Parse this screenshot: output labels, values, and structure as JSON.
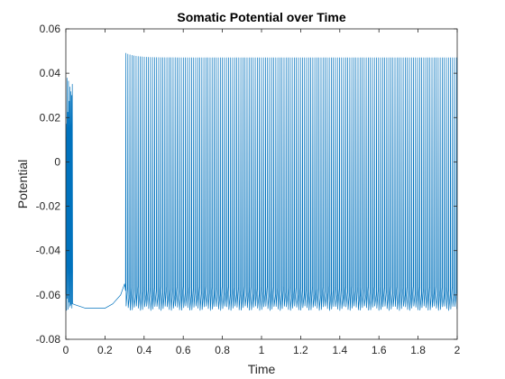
{
  "chart_data": {
    "type": "line",
    "title": "Somatic Potential over Time",
    "xlabel": "Time",
    "ylabel": "Potential",
    "xlim": [
      0,
      2
    ],
    "ylim": [
      -0.08,
      0.06
    ],
    "grid": false,
    "x_ticks": [
      "0",
      "0.2",
      "0.4",
      "0.6",
      "0.8",
      "1",
      "1.2",
      "1.4",
      "1.6",
      "1.8",
      "2"
    ],
    "y_ticks": [
      "-0.08",
      "-0.06",
      "-0.04",
      "-0.02",
      "0",
      "0.02",
      "0.04",
      "0.06"
    ],
    "series": [
      {
        "color": "#0072bd",
        "segments": [
          {
            "kind": "initial-oscillation",
            "t_start": 0.0,
            "t_end": 0.035,
            "v_min": -0.067,
            "v_max": 0.038,
            "cycles": 9
          },
          {
            "kind": "resting",
            "points": [
              [
                0.035,
                -0.064
              ],
              [
                0.05,
                -0.0645
              ],
              [
                0.1,
                -0.066
              ],
              [
                0.2,
                -0.066
              ],
              [
                0.24,
                -0.064
              ],
              [
                0.28,
                -0.06
              ],
              [
                0.3,
                -0.055
              ]
            ]
          },
          {
            "kind": "spike-train",
            "t_start": 0.305,
            "t_end": 2.0,
            "spike_interval": 0.0105,
            "peak_start": 0.049,
            "peak_steady": 0.047,
            "trough": -0.066,
            "mid_level": -0.058
          }
        ]
      }
    ]
  }
}
